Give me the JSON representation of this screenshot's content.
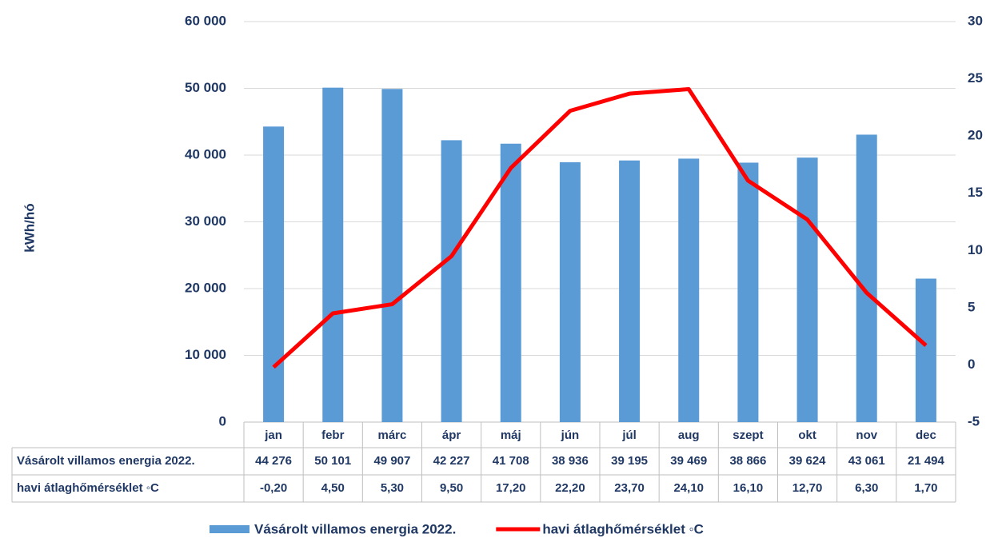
{
  "chart_data": {
    "type": "bar",
    "y_axis_label": "kWh/hó",
    "categories": [
      "jan",
      "febr",
      "márc",
      "ápr",
      "máj",
      "jún",
      "júl",
      "aug",
      "szept",
      "okt",
      "nov",
      "dec"
    ],
    "series": [
      {
        "name": "Vásárolt villamos energia 2022.",
        "type": "bar",
        "color": "#5b9bd5",
        "values": [
          44276,
          50101,
          49907,
          42227,
          41708,
          38936,
          39195,
          39469,
          38866,
          39624,
          43061,
          21494
        ],
        "value_labels": [
          "44 276",
          "50 101",
          "49 907",
          "42 227",
          "41 708",
          "38 936",
          "39 195",
          "39 469",
          "38 866",
          "39 624",
          "43 061",
          "21 494"
        ]
      },
      {
        "name": "havi átlaghőmérséklet ◦C",
        "type": "line",
        "axis": "y2",
        "color": "#ff0000",
        "values": [
          -0.2,
          4.5,
          5.3,
          9.5,
          17.2,
          22.2,
          23.7,
          24.1,
          16.1,
          12.7,
          6.3,
          1.7
        ],
        "value_labels": [
          "-0,20",
          "4,50",
          "5,30",
          "9,50",
          "17,20",
          "22,20",
          "23,70",
          "24,10",
          "16,10",
          "12,70",
          "6,30",
          "1,70"
        ]
      }
    ],
    "ylim": [
      0,
      60000
    ],
    "yticks": [
      {
        "value": 0,
        "label": "0"
      },
      {
        "value": 10000,
        "label": "10 000"
      },
      {
        "value": 20000,
        "label": "20 000"
      },
      {
        "value": 30000,
        "label": "30 000"
      },
      {
        "value": 40000,
        "label": "40 000"
      },
      {
        "value": 50000,
        "label": "50 000"
      },
      {
        "value": 60000,
        "label": "60 000"
      }
    ],
    "y2lim": [
      -5,
      30
    ],
    "y2ticks": [
      -5,
      0,
      5,
      10,
      15,
      20,
      25,
      30
    ],
    "grid": true,
    "legend": "bottom"
  }
}
